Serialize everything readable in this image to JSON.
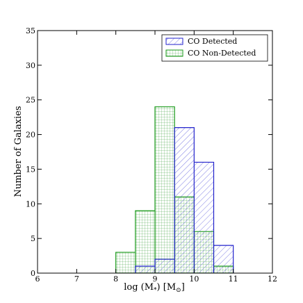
{
  "chart_data": {
    "type": "bar",
    "subtype": "step-histogram",
    "title": "",
    "xlabel": "log (M",
    "xlabel_sub": "*",
    "xlabel_tail": ") [M",
    "xlabel_sun": "⊙",
    "xlabel_end": "]",
    "ylabel": "Number of Galaxies",
    "xlim": [
      6,
      12
    ],
    "ylim": [
      0,
      35
    ],
    "xticks": [
      6,
      7,
      8,
      9,
      10,
      11,
      12
    ],
    "yticks": [
      0,
      5,
      10,
      15,
      20,
      25,
      30,
      35
    ],
    "bin_width": 0.5,
    "legend_position": "top-right",
    "grid": false,
    "series": [
      {
        "name": "CO Detected",
        "color": "#2222cc",
        "hatch": "diagonal",
        "bins": [
          8.5,
          9.0,
          9.5,
          10.0,
          10.5
        ],
        "values": [
          1,
          2,
          21,
          16,
          4
        ]
      },
      {
        "name": "CO Non-Detected",
        "color": "#1a9a1a",
        "hatch": "grid",
        "bins": [
          8.0,
          8.5,
          9.0,
          9.5,
          10.0,
          10.5
        ],
        "values": [
          3,
          9,
          24,
          11,
          6,
          1
        ]
      }
    ]
  }
}
